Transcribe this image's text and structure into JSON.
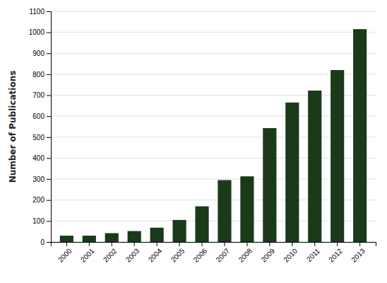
{
  "chart_data": {
    "type": "bar",
    "categories": [
      "2000",
      "2001",
      "2002",
      "2003",
      "2004",
      "2005",
      "2006",
      "2007",
      "2008",
      "2009",
      "2010",
      "2011",
      "2012",
      "2013"
    ],
    "values": [
      30,
      30,
      42,
      52,
      68,
      105,
      170,
      295,
      313,
      543,
      665,
      722,
      820,
      1015
    ],
    "color": "#1a3a1a",
    "ylabel": "Number of Publications",
    "ylim": [
      0,
      1100
    ],
    "yticks": [
      0,
      100,
      200,
      300,
      400,
      500,
      600,
      700,
      800,
      900,
      1000,
      1100
    ],
    "grid": true
  }
}
